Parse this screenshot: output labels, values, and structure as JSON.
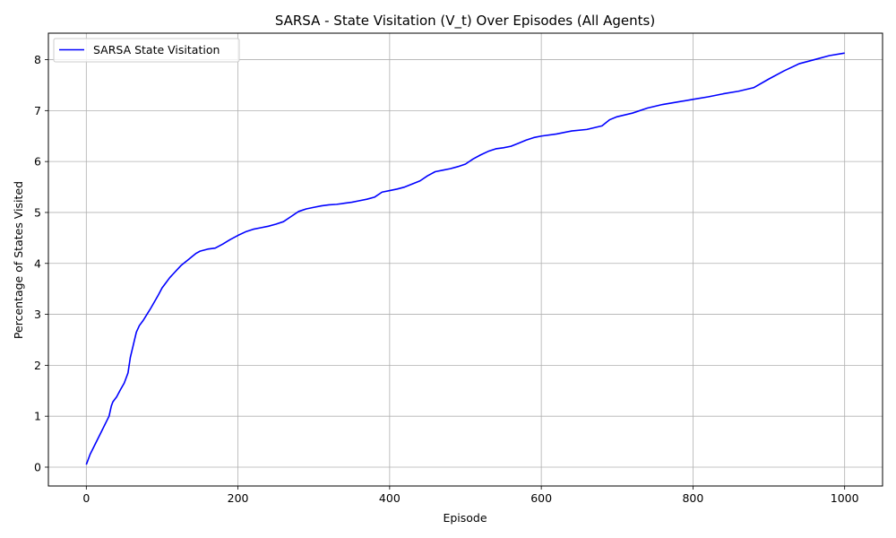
{
  "chart_data": {
    "type": "line",
    "title": "SARSA - State Visitation (V_t) Over Episodes (All Agents)",
    "xlabel": "Episode",
    "ylabel": "Percentage of States Visited",
    "xlim": [
      -50,
      1050
    ],
    "ylim": [
      -0.37,
      8.52
    ],
    "xticks": [
      0,
      200,
      400,
      600,
      800,
      1000
    ],
    "yticks": [
      0,
      1,
      2,
      3,
      4,
      5,
      6,
      7,
      8
    ],
    "grid": true,
    "legend_position": "top-left",
    "series": [
      {
        "name": "SARSA State Visitation",
        "color": "#0000ff",
        "x": [
          0,
          5,
          10,
          15,
          20,
          25,
          30,
          33,
          35,
          40,
          45,
          50,
          55,
          58,
          62,
          66,
          70,
          75,
          80,
          85,
          90,
          95,
          100,
          105,
          110,
          115,
          120,
          125,
          130,
          135,
          140,
          145,
          150,
          155,
          160,
          170,
          180,
          190,
          200,
          210,
          220,
          230,
          240,
          250,
          260,
          270,
          280,
          290,
          300,
          310,
          320,
          330,
          340,
          350,
          360,
          370,
          380,
          390,
          400,
          410,
          420,
          430,
          440,
          450,
          460,
          470,
          480,
          490,
          500,
          510,
          520,
          530,
          540,
          550,
          560,
          570,
          580,
          590,
          600,
          620,
          640,
          660,
          680,
          690,
          700,
          720,
          740,
          760,
          780,
          800,
          820,
          840,
          860,
          880,
          900,
          920,
          940,
          960,
          980,
          1000
        ],
        "y": [
          0.05,
          0.25,
          0.4,
          0.55,
          0.7,
          0.85,
          1.0,
          1.2,
          1.28,
          1.38,
          1.52,
          1.65,
          1.85,
          2.15,
          2.4,
          2.65,
          2.78,
          2.88,
          3.0,
          3.12,
          3.25,
          3.38,
          3.52,
          3.62,
          3.72,
          3.8,
          3.88,
          3.96,
          4.02,
          4.08,
          4.14,
          4.2,
          4.24,
          4.26,
          4.28,
          4.3,
          4.38,
          4.47,
          4.55,
          4.62,
          4.67,
          4.7,
          4.73,
          4.77,
          4.82,
          4.92,
          5.02,
          5.07,
          5.1,
          5.13,
          5.15,
          5.16,
          5.18,
          5.2,
          5.23,
          5.26,
          5.3,
          5.4,
          5.43,
          5.46,
          5.5,
          5.56,
          5.62,
          5.72,
          5.8,
          5.83,
          5.86,
          5.9,
          5.95,
          6.05,
          6.13,
          6.2,
          6.25,
          6.27,
          6.3,
          6.36,
          6.42,
          6.47,
          6.5,
          6.54,
          6.6,
          6.63,
          6.7,
          6.82,
          6.88,
          6.95,
          7.05,
          7.12,
          7.17,
          7.22,
          7.27,
          7.33,
          7.38,
          7.45,
          7.62,
          7.78,
          7.92,
          8.0,
          8.08,
          8.13
        ]
      }
    ]
  }
}
